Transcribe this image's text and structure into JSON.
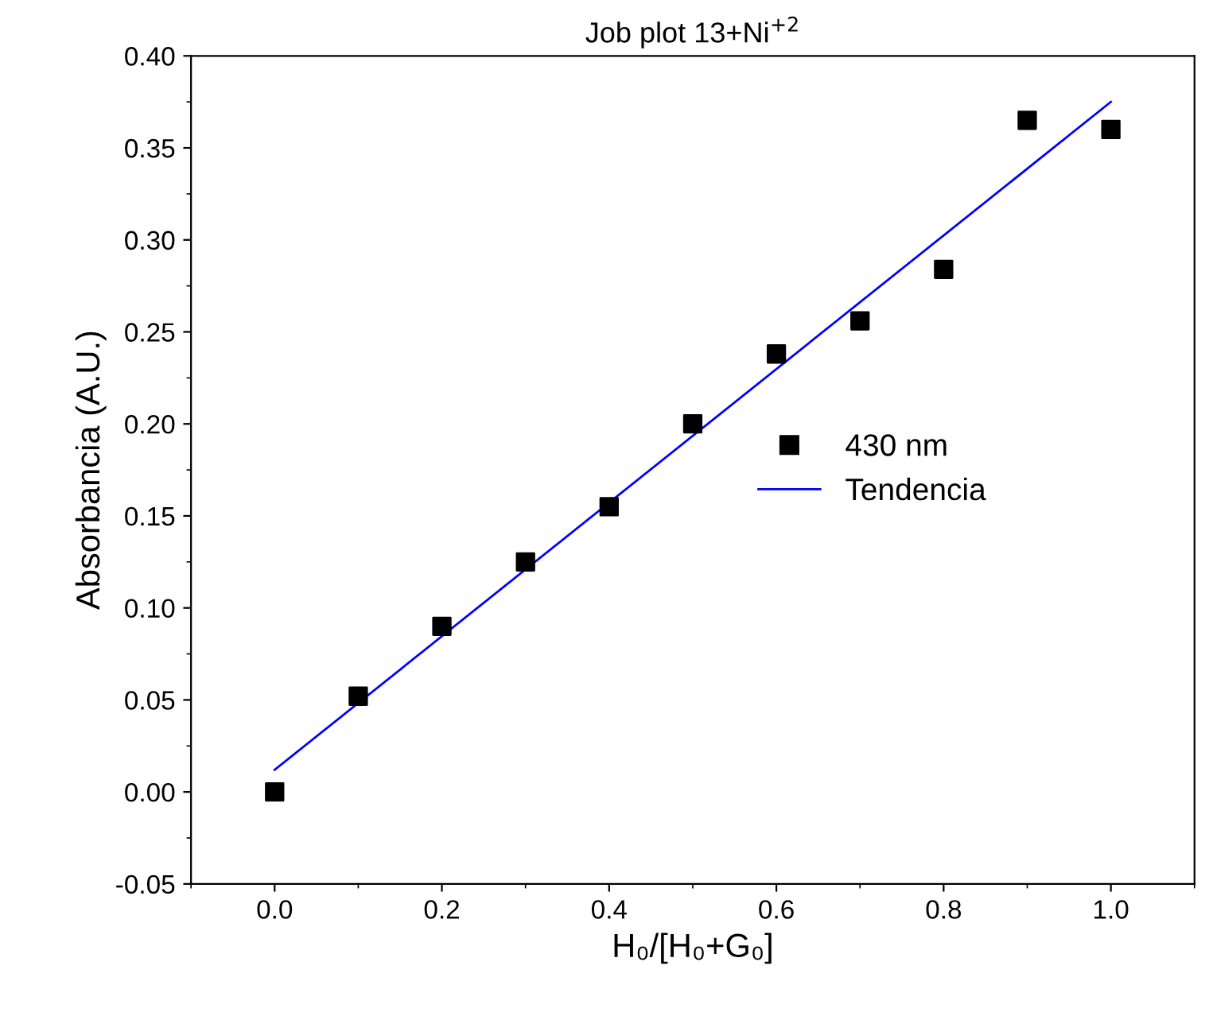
{
  "chart_data": {
    "type": "scatter",
    "title": "Job plot 13+Ni$^{+2}$",
    "xlabel": "H₀/[H₀+G₀]",
    "ylabel": "Absorbancia (A.U.)",
    "x": [
      0.0,
      0.1,
      0.2,
      0.3,
      0.4,
      0.5,
      0.6,
      0.7,
      0.8,
      0.9,
      1.0
    ],
    "series": [
      {
        "name": "430 nm",
        "color": "#000000",
        "marker": "square",
        "values": [
          0.0,
          0.052,
          0.09,
          0.125,
          0.155,
          0.2,
          0.238,
          0.256,
          0.284,
          0.365,
          0.36
        ]
      },
      {
        "name": "Tendencia",
        "type": "line",
        "color": "#0000ff",
        "marker": "none",
        "line_style": "solid",
        "x": [
          0.0,
          1.0
        ],
        "values": [
          0.012,
          0.375
        ]
      }
    ],
    "xlim": [
      -0.1,
      1.1
    ],
    "xticks": [
      {
        "value": 0.0,
        "label": "0.0"
      },
      {
        "value": 0.2,
        "label": "0.2"
      },
      {
        "value": 0.4,
        "label": "0.4"
      },
      {
        "value": 0.6,
        "label": "0.6"
      },
      {
        "value": 0.8,
        "label": "0.8"
      },
      {
        "value": 1.0,
        "label": "1.0"
      }
    ],
    "ylim": [
      -0.05,
      0.4
    ],
    "yticks": [
      {
        "value": -0.05,
        "label": "-0.05"
      },
      {
        "value": 0.0,
        "label": "0.00"
      },
      {
        "value": 0.05,
        "label": "0.05"
      },
      {
        "value": 0.1,
        "label": "0.10"
      },
      {
        "value": 0.15,
        "label": "0.15"
      },
      {
        "value": 0.2,
        "label": "0.20"
      },
      {
        "value": 0.25,
        "label": "0.25"
      },
      {
        "value": 0.3,
        "label": "0.30"
      },
      {
        "value": 0.35,
        "label": "0.35"
      },
      {
        "value": 0.4,
        "label": "0.40"
      }
    ],
    "grid": false,
    "legend": "right"
  }
}
